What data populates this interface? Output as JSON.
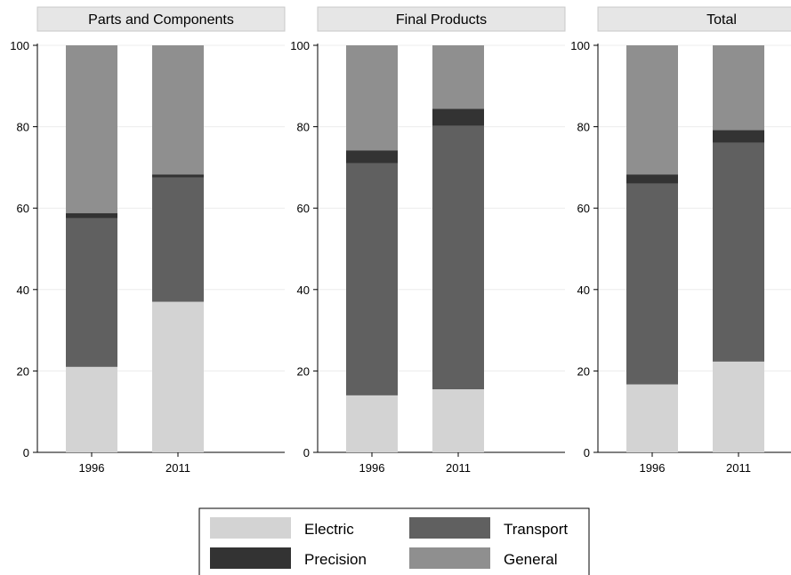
{
  "chart_data": {
    "type": "bar",
    "stacked": true,
    "grid": true,
    "legend_position": "bottom",
    "ylim": [
      0,
      100
    ],
    "yticks": [
      0,
      20,
      40,
      60,
      80,
      100
    ],
    "categories": [
      "1996",
      "2011"
    ],
    "series_colors": {
      "Electric": "#d3d3d3",
      "Transport": "#606060",
      "Precision": "#333333",
      "General": "#8f8f8f"
    },
    "panels": [
      {
        "title": "Parts and Components",
        "series": [
          {
            "name": "Electric",
            "values": [
              21,
              37
            ]
          },
          {
            "name": "Transport",
            "values": [
              36.5,
              30.5
            ]
          },
          {
            "name": "Precision",
            "values": [
              1.3,
              0.8
            ]
          },
          {
            "name": "General",
            "values": [
              41.2,
              31.7
            ]
          }
        ]
      },
      {
        "title": "Final Products",
        "series": [
          {
            "name": "Electric",
            "values": [
              14,
              15.5
            ]
          },
          {
            "name": "Transport",
            "values": [
              57,
              64.7
            ]
          },
          {
            "name": "Precision",
            "values": [
              3.2,
              4.2
            ]
          },
          {
            "name": "General",
            "values": [
              25.8,
              15.6
            ]
          }
        ]
      },
      {
        "title": "Total",
        "series": [
          {
            "name": "Electric",
            "values": [
              16.7,
              22.3
            ]
          },
          {
            "name": "Transport",
            "values": [
              49.3,
              53.8
            ]
          },
          {
            "name": "Precision",
            "values": [
              2.3,
              3.1
            ]
          },
          {
            "name": "General",
            "values": [
              31.7,
              20.8
            ]
          }
        ]
      }
    ],
    "legend": [
      [
        "Electric",
        "Transport"
      ],
      [
        "Precision",
        "General"
      ]
    ]
  }
}
